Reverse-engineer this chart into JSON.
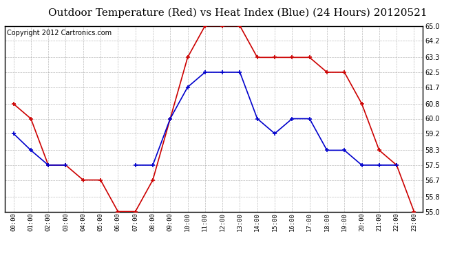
{
  "title": "Outdoor Temperature (Red) vs Heat Index (Blue) (24 Hours) 20120521",
  "copyright": "Copyright 2012 Cartronics.com",
  "x_labels": [
    "00:00",
    "01:00",
    "02:00",
    "03:00",
    "04:00",
    "05:00",
    "06:00",
    "07:00",
    "08:00",
    "09:00",
    "10:00",
    "11:00",
    "12:00",
    "13:00",
    "14:00",
    "15:00",
    "16:00",
    "17:00",
    "18:00",
    "19:00",
    "20:00",
    "21:00",
    "22:00",
    "23:00"
  ],
  "red_values": [
    60.8,
    60.0,
    57.5,
    57.5,
    56.7,
    56.7,
    55.0,
    55.0,
    56.7,
    60.0,
    63.3,
    65.0,
    65.0,
    65.0,
    63.3,
    63.3,
    63.3,
    63.3,
    62.5,
    62.5,
    60.8,
    58.3,
    57.5,
    55.0
  ],
  "blue_values": [
    59.2,
    58.3,
    57.5,
    57.5,
    null,
    null,
    null,
    57.5,
    57.5,
    60.0,
    61.7,
    62.5,
    62.5,
    62.5,
    60.0,
    59.2,
    60.0,
    60.0,
    58.3,
    58.3,
    57.5,
    57.5,
    57.5,
    null
  ],
  "ylim": [
    55.0,
    65.0
  ],
  "yticks": [
    55.0,
    55.8,
    56.7,
    57.5,
    58.3,
    59.2,
    60.0,
    60.8,
    61.7,
    62.5,
    63.3,
    64.2,
    65.0
  ],
  "background_color": "#ffffff",
  "grid_color": "#aaaaaa",
  "red_color": "#cc0000",
  "blue_color": "#0000cc",
  "title_fontsize": 11,
  "copyright_fontsize": 7
}
